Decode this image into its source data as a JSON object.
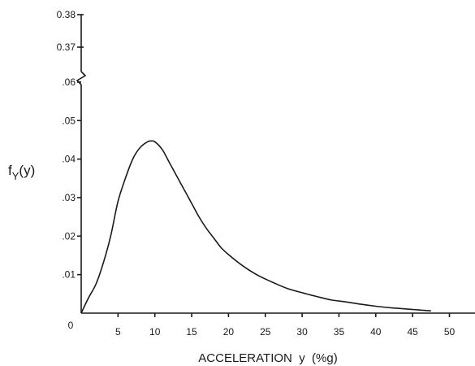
{
  "chart_data": {
    "type": "line",
    "title": "",
    "xlabel": "ACCELERATION  y  (%g)",
    "ylabel": {
      "base": "f",
      "sub": "Y",
      "rest": "(y)"
    },
    "xlim": [
      0,
      50
    ],
    "ylim_lower": [
      0,
      0.065
    ],
    "ylim_upper": [
      0.37,
      0.38
    ],
    "axis_break": true,
    "grid": false,
    "x_ticks": [
      5,
      10,
      15,
      20,
      25,
      30,
      35,
      40,
      45,
      50
    ],
    "x_tick_labels": [
      "5",
      "10",
      "15",
      "20",
      "25",
      "30",
      "35",
      "40",
      "45",
      "50"
    ],
    "origin_label": "0",
    "y_ticks": [
      0.01,
      0.02,
      0.03,
      0.04,
      0.05,
      0.06
    ],
    "y_tick_labels": [
      ".01",
      ".02",
      ".03",
      ".04",
      ".05",
      ".06"
    ],
    "y_upper_ticks": [
      0.37,
      0.38
    ],
    "y_upper_tick_labels": [
      "0.37",
      "0.38"
    ],
    "series": [
      {
        "x": [
          0,
          1,
          2,
          3,
          4,
          5,
          6,
          7,
          8,
          9,
          9.5,
          10,
          11,
          12,
          13,
          14,
          15,
          16,
          17,
          18,
          19,
          20,
          22,
          24,
          26,
          28,
          30,
          32,
          34,
          36,
          38,
          40,
          42,
          44,
          46,
          47.5
        ],
        "y": [
          0,
          0.004,
          0.0075,
          0.013,
          0.02,
          0.029,
          0.035,
          0.04,
          0.043,
          0.0445,
          0.0447,
          0.0445,
          0.0425,
          0.039,
          0.0355,
          0.032,
          0.0285,
          0.025,
          0.022,
          0.0195,
          0.017,
          0.0152,
          0.0122,
          0.0098,
          0.008,
          0.0064,
          0.0053,
          0.0043,
          0.0034,
          0.0029,
          0.0023,
          0.0018,
          0.0014,
          0.0011,
          0.0008,
          0.0006
        ]
      }
    ]
  }
}
